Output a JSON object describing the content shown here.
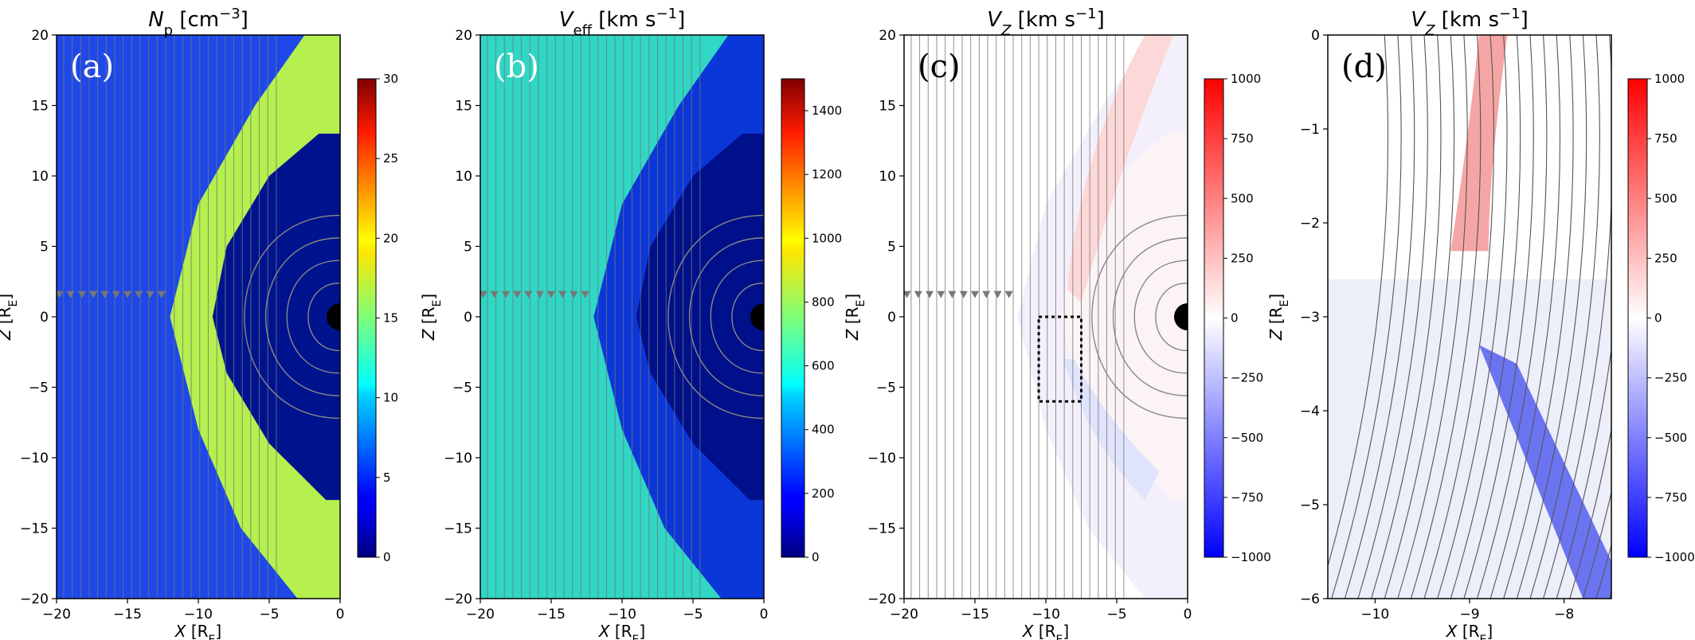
{
  "chart_data": [
    {
      "id": "a",
      "type": "heatmap",
      "title": "N_p [cm^-3]",
      "title_main": "N",
      "title_sub": "p",
      "title_rest": " [cm",
      "title_sup": "-3",
      "title_end": "]",
      "panel_label": "(a)",
      "xlabel": "X [R_E]",
      "ylabel": "Z [R_E]",
      "xlim": [
        -20,
        0
      ],
      "ylim": [
        -20,
        20
      ],
      "xticks": [
        -20,
        -15,
        -10,
        -5,
        0
      ],
      "yticks": [
        20,
        15,
        10,
        5,
        0,
        -5,
        -10,
        -15,
        -20
      ],
      "colormap": "jet",
      "colorbar_range": [
        0,
        30
      ],
      "colorbar_ticks": [
        30,
        25,
        20,
        15,
        10,
        5,
        0
      ],
      "earth": true,
      "streamlines": true,
      "description_values": {
        "solar_wind_density": 4,
        "magnetosheath_density": 15,
        "magnetosphere_density": 1
      }
    },
    {
      "id": "b",
      "type": "heatmap",
      "title": "V_eff [km s^-1]",
      "title_main": "V",
      "title_sub": "eff",
      "title_rest": " [km s",
      "title_sup": "-1",
      "title_end": "]",
      "panel_label": "(b)",
      "xlabel": "X [R_E]",
      "ylabel": "Z [R_E]",
      "xlim": [
        -20,
        0
      ],
      "ylim": [
        -20,
        20
      ],
      "xticks": [
        -20,
        -15,
        -10,
        -5,
        0
      ],
      "yticks": [
        20,
        15,
        10,
        5,
        0,
        -5,
        -10,
        -15,
        -20
      ],
      "colormap": "jet",
      "colorbar_range": [
        0,
        1500
      ],
      "colorbar_ticks": [
        1400,
        1200,
        1000,
        800,
        600,
        400,
        200,
        0
      ],
      "earth": true,
      "streamlines": true
    },
    {
      "id": "c",
      "type": "heatmap",
      "title": "V_Z [km s^-1]",
      "title_main": "V",
      "title_sub": "Z",
      "title_rest": " [km s",
      "title_sup": "-1",
      "title_end": "]",
      "panel_label": "(c)",
      "xlabel": "X [R_E]",
      "ylabel": "Z [R_E]",
      "xlim": [
        -20,
        0
      ],
      "ylim": [
        -20,
        20
      ],
      "xticks": [
        -20,
        -15,
        -10,
        -5,
        0
      ],
      "yticks": [
        20,
        15,
        10,
        5,
        0,
        -5,
        -10,
        -15,
        -20
      ],
      "colormap": "bwr",
      "colorbar_range": [
        -1000,
        1000
      ],
      "colorbar_ticks": [
        1000,
        750,
        500,
        250,
        0,
        -250,
        -500,
        -750,
        -1000
      ],
      "earth": true,
      "streamlines": true,
      "zoom_box": {
        "x": [
          -10.5,
          -7.5
        ],
        "z": [
          -6,
          0
        ]
      }
    },
    {
      "id": "d",
      "type": "heatmap",
      "title": "V_Z [km s^-1]",
      "title_main": "V",
      "title_sub": "Z",
      "title_rest": " [km s",
      "title_sup": "-1",
      "title_end": "]",
      "panel_label": "(d)",
      "xlabel": "X [R_E]",
      "ylabel": "Z [R_E]",
      "xlim": [
        -10.5,
        -7.5
      ],
      "ylim": [
        -6,
        0
      ],
      "xticks": [
        -10,
        -9,
        -8
      ],
      "yticks": [
        0,
        -1,
        -2,
        -3,
        -4,
        -5,
        -6
      ],
      "colormap": "bwr",
      "colorbar_range": [
        -1000,
        1000
      ],
      "colorbar_ticks": [
        1000,
        750,
        500,
        250,
        0,
        -250,
        -500,
        -750,
        -1000
      ],
      "earth": false,
      "streamlines": true
    }
  ]
}
